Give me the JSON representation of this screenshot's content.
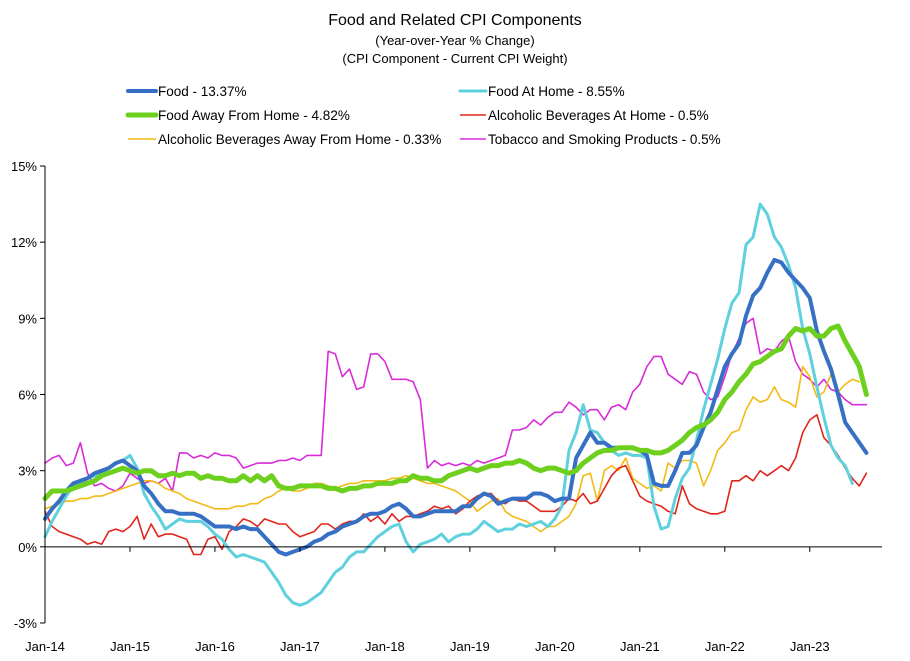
{
  "chart_data": {
    "type": "line",
    "title": "Food and Related CPI Components",
    "subtitle": [
      "(Year-over-Year % Change)",
      "(CPI Component - Current CPI Weight)"
    ],
    "xlabel": "",
    "ylabel": "",
    "ylim": [
      -3,
      15
    ],
    "yticks": [
      -3,
      0,
      3,
      6,
      9,
      12,
      15
    ],
    "ytick_labels": [
      "-3%",
      "0%",
      "3%",
      "6%",
      "9%",
      "12%",
      "15%"
    ],
    "x_range": [
      2014.0,
      2023.85
    ],
    "xticks": [
      2014,
      2015,
      2016,
      2017,
      2018,
      2019,
      2020,
      2021,
      2022,
      2023
    ],
    "xtick_labels": [
      "Jan-14",
      "Jan-15",
      "Jan-16",
      "Jan-17",
      "Jan-18",
      "Jan-19",
      "Jan-20",
      "Jan-21",
      "Jan-22",
      "Jan-23"
    ],
    "grid": false,
    "legend": "top",
    "x_start": "Jan-2014",
    "x_step": "monthly",
    "series": [
      {
        "name": "Food - 13.37%",
        "color": "#3570c4",
        "width": 4,
        "values": [
          1.1,
          1.5,
          1.8,
          2.2,
          2.5,
          2.6,
          2.7,
          2.9,
          3.0,
          3.1,
          3.3,
          3.4,
          3.2,
          3.0,
          2.4,
          2.1,
          1.7,
          1.4,
          1.4,
          1.3,
          1.3,
          1.3,
          1.2,
          1.0,
          0.8,
          0.8,
          0.8,
          0.7,
          0.8,
          0.7,
          0.7,
          0.4,
          0.1,
          -0.2,
          -0.3,
          -0.2,
          -0.1,
          0.0,
          0.2,
          0.3,
          0.5,
          0.6,
          0.8,
          0.9,
          1.0,
          1.2,
          1.3,
          1.3,
          1.4,
          1.6,
          1.7,
          1.5,
          1.2,
          1.2,
          1.3,
          1.4,
          1.4,
          1.4,
          1.4,
          1.6,
          1.6,
          1.9,
          2.1,
          2.0,
          1.7,
          1.8,
          1.9,
          1.9,
          1.9,
          2.1,
          2.1,
          2.0,
          1.8,
          1.9,
          1.9,
          3.5,
          4.0,
          4.5,
          4.1,
          4.1,
          3.9,
          3.9,
          3.9,
          3.9,
          3.8,
          3.6,
          2.5,
          2.4,
          2.4,
          3.0,
          3.7,
          3.7,
          4.0,
          4.7,
          5.3,
          6.2,
          7.1,
          7.6,
          8.0,
          9.1,
          9.9,
          10.2,
          10.8,
          11.3,
          11.2,
          10.8,
          10.5,
          10.2,
          9.8,
          8.5,
          7.7,
          7.0,
          6.0,
          4.9,
          4.5,
          4.1,
          3.7
        ]
      },
      {
        "name": "Food At Home - 8.55%",
        "color": "#5fd0dd",
        "width": 3,
        "values": [
          0.4,
          1.0,
          1.5,
          2.0,
          2.4,
          2.5,
          2.7,
          2.8,
          2.9,
          3.1,
          3.3,
          3.4,
          3.6,
          3.1,
          2.1,
          1.6,
          1.2,
          0.7,
          0.9,
          1.1,
          1.0,
          1.0,
          1.0,
          0.8,
          0.5,
          0.3,
          -0.1,
          -0.4,
          -0.3,
          -0.4,
          -0.5,
          -0.6,
          -1.0,
          -1.4,
          -1.9,
          -2.2,
          -2.3,
          -2.2,
          -2.0,
          -1.8,
          -1.4,
          -1.0,
          -0.8,
          -0.4,
          -0.2,
          -0.2,
          0.1,
          0.4,
          0.6,
          0.8,
          0.9,
          0.2,
          -0.2,
          0.1,
          0.2,
          0.3,
          0.5,
          0.2,
          0.4,
          0.5,
          0.5,
          0.7,
          1.0,
          0.8,
          0.6,
          0.7,
          0.7,
          0.9,
          0.8,
          0.9,
          1.0,
          0.8,
          1.1,
          1.6,
          3.8,
          4.5,
          5.6,
          4.6,
          4.5,
          4.1,
          3.8,
          3.6,
          3.7,
          3.6,
          3.6,
          3.5,
          1.6,
          0.7,
          0.8,
          1.9,
          2.7,
          3.1,
          4.2,
          5.4,
          6.4,
          7.4,
          8.6,
          9.6,
          10.0,
          11.9,
          12.2,
          13.5,
          13.1,
          12.2,
          11.8,
          11.1,
          10.2,
          8.6,
          7.6,
          6.3,
          5.1,
          4.0,
          3.5,
          3.2,
          2.5
        ]
      },
      {
        "name": "Food Away From Home - 4.82%",
        "color": "#6ed01e",
        "width": 5,
        "values": [
          1.9,
          2.2,
          2.2,
          2.2,
          2.3,
          2.4,
          2.5,
          2.6,
          2.8,
          2.9,
          3.0,
          3.1,
          3.0,
          2.9,
          3.0,
          3.0,
          2.8,
          2.8,
          2.9,
          2.8,
          2.9,
          2.9,
          2.7,
          2.8,
          2.7,
          2.7,
          2.6,
          2.6,
          2.8,
          2.6,
          2.8,
          2.6,
          2.8,
          2.4,
          2.3,
          2.3,
          2.4,
          2.4,
          2.4,
          2.4,
          2.3,
          2.3,
          2.2,
          2.3,
          2.3,
          2.4,
          2.4,
          2.5,
          2.5,
          2.5,
          2.6,
          2.6,
          2.8,
          2.7,
          2.7,
          2.6,
          2.6,
          2.8,
          2.9,
          3.0,
          3.1,
          3.0,
          3.1,
          3.2,
          3.2,
          3.3,
          3.3,
          3.4,
          3.3,
          3.1,
          3.0,
          3.1,
          3.1,
          3.0,
          2.9,
          3.0,
          3.3,
          3.5,
          3.7,
          3.8,
          3.8,
          3.9,
          3.9,
          3.9,
          3.8,
          3.8,
          3.7,
          3.7,
          3.8,
          4.0,
          4.2,
          4.5,
          4.7,
          4.8,
          5.0,
          5.3,
          5.8,
          6.1,
          6.5,
          6.8,
          7.2,
          7.3,
          7.5,
          7.7,
          7.8,
          8.3,
          8.6,
          8.5,
          8.6,
          8.3,
          8.3,
          8.6,
          8.7,
          8.1,
          7.6,
          7.1,
          6.0
        ]
      },
      {
        "name": "Alcoholic Beverages At Home - 0.5%",
        "color": "#e0261c",
        "width": 1.6,
        "values": [
          1.4,
          0.8,
          0.6,
          0.5,
          0.4,
          0.3,
          0.1,
          0.2,
          0.1,
          0.6,
          0.7,
          0.6,
          0.8,
          1.2,
          0.3,
          0.9,
          0.4,
          0.5,
          0.5,
          0.4,
          0.3,
          -0.3,
          -0.3,
          0.3,
          0.4,
          -0.1,
          0.6,
          0.8,
          1.1,
          1.0,
          0.8,
          1.1,
          1.0,
          0.9,
          0.9,
          0.6,
          0.4,
          0.5,
          0.6,
          0.9,
          0.9,
          0.7,
          0.9,
          1.0,
          1.0,
          1.3,
          1.0,
          1.2,
          0.9,
          1.3,
          1.0,
          1.2,
          1.2,
          1.3,
          1.4,
          1.6,
          1.5,
          1.6,
          1.3,
          1.5,
          1.8,
          2.0,
          2.1,
          2.1,
          1.8,
          1.7,
          1.9,
          1.8,
          1.8,
          1.6,
          1.4,
          1.4,
          1.4,
          1.6,
          1.9,
          1.8,
          2.1,
          1.7,
          1.8,
          2.3,
          2.8,
          3.1,
          3.2,
          2.6,
          2.0,
          1.8,
          1.7,
          1.6,
          1.4,
          1.3,
          2.4,
          1.7,
          1.5,
          1.4,
          1.3,
          1.3,
          1.4,
          2.6,
          2.6,
          2.8,
          2.6,
          3.0,
          2.8,
          3.0,
          3.2,
          3.0,
          3.5,
          4.5,
          5.0,
          5.2,
          4.3,
          4.0,
          3.6,
          3.1,
          2.7,
          2.4,
          2.9
        ]
      },
      {
        "name": "Alcoholic Beverages Away From Home - 0.33%",
        "color": "#f2bb14",
        "width": 1.6,
        "values": [
          1.5,
          1.6,
          1.7,
          1.8,
          1.8,
          1.9,
          1.9,
          2.0,
          2.0,
          2.1,
          2.2,
          2.3,
          2.4,
          2.5,
          2.6,
          2.6,
          2.5,
          2.3,
          2.2,
          2.1,
          1.9,
          1.8,
          1.7,
          1.6,
          1.5,
          1.5,
          1.5,
          1.6,
          1.6,
          1.7,
          1.7,
          1.9,
          2.0,
          2.2,
          2.3,
          2.2,
          2.2,
          2.3,
          2.5,
          2.5,
          2.4,
          2.3,
          2.4,
          2.5,
          2.5,
          2.6,
          2.6,
          2.6,
          2.6,
          2.7,
          2.7,
          2.8,
          2.7,
          2.6,
          2.5,
          2.5,
          2.4,
          2.3,
          2.2,
          2.0,
          1.8,
          1.4,
          1.6,
          1.8,
          1.9,
          1.4,
          1.2,
          1.1,
          1.0,
          0.8,
          0.6,
          0.8,
          0.8,
          1.0,
          1.2,
          1.7,
          2.8,
          2.9,
          1.8,
          3.0,
          3.2,
          3.0,
          3.5,
          2.7,
          2.5,
          2.3,
          2.4,
          2.2,
          3.3,
          3.1,
          3.4,
          3.4,
          3.3,
          2.4,
          3.0,
          3.8,
          4.1,
          4.5,
          4.6,
          5.4,
          5.9,
          5.7,
          5.8,
          6.3,
          5.8,
          5.7,
          5.5,
          7.1,
          6.7,
          5.9,
          6.1,
          6.8,
          6.1,
          6.4,
          6.6,
          6.5
        ]
      },
      {
        "name": "Tobacco and Smoking Products - 0.5%",
        "color": "#d82cd8",
        "width": 1.6,
        "values": [
          3.3,
          3.5,
          3.6,
          3.2,
          3.3,
          4.1,
          2.9,
          2.4,
          2.5,
          2.3,
          2.2,
          2.4,
          2.9,
          2.7,
          2.5,
          2.6,
          2.5,
          2.7,
          2.2,
          3.7,
          3.7,
          3.5,
          3.6,
          3.5,
          3.7,
          3.6,
          3.6,
          3.5,
          3.1,
          3.2,
          3.3,
          3.3,
          3.3,
          3.4,
          3.4,
          3.5,
          3.4,
          3.6,
          3.6,
          3.6,
          7.7,
          7.6,
          6.7,
          7.0,
          6.2,
          6.3,
          7.6,
          7.6,
          7.3,
          6.6,
          6.6,
          6.6,
          6.5,
          5.8,
          3.1,
          3.4,
          3.2,
          3.3,
          3.2,
          3.3,
          3.2,
          3.4,
          3.3,
          3.4,
          3.5,
          3.6,
          4.6,
          4.6,
          4.7,
          5.0,
          4.8,
          5.1,
          5.3,
          5.3,
          5.7,
          5.5,
          5.2,
          5.4,
          5.4,
          5.0,
          5.5,
          5.6,
          5.4,
          6.1,
          6.4,
          7.1,
          7.5,
          7.5,
          6.8,
          6.6,
          6.4,
          6.9,
          6.8,
          6.1,
          5.8,
          5.9,
          6.7,
          7.6,
          8.2,
          8.8,
          9.0,
          7.6,
          7.8,
          7.7,
          8.1,
          8.3,
          7.3,
          6.8,
          6.6,
          6.3,
          6.6,
          6.2,
          6.1,
          5.8,
          5.6,
          5.6,
          5.6
        ]
      }
    ]
  }
}
